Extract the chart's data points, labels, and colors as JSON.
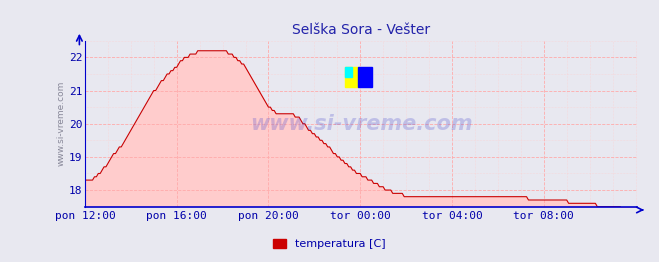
{
  "title": "Selška Sora - Vešter",
  "title_color": "#2222aa",
  "bg_color": "#e8e8f0",
  "plot_bg_color": "#e8e8f0",
  "line_color": "#cc0000",
  "fill_color": "#ffcccc",
  "grid_color": "#ffaaaa",
  "grid_minor_color": "#ffcccc",
  "axis_color": "#0000cc",
  "tick_label_color": "#0000aa",
  "ylabel_text": "www.si-vreme.com",
  "ylabel_color": "#888899",
  "legend_label": "temperatura [C]",
  "legend_color": "#cc0000",
  "watermark_text": "www.si-vreme.com",
  "ylim": [
    17.5,
    22.5
  ],
  "yticks": [
    18,
    19,
    20,
    21,
    22
  ],
  "x_tick_positions": [
    0,
    48,
    96,
    144,
    192,
    240
  ],
  "x_tick_labels": [
    "pon 12:00",
    "pon 16:00",
    "pon 20:00",
    "tor 00:00",
    "tor 04:00",
    "tor 08:00"
  ],
  "temp_data": [
    18.3,
    18.3,
    18.3,
    18.3,
    18.3,
    18.4,
    18.4,
    18.5,
    18.5,
    18.6,
    18.7,
    18.7,
    18.8,
    18.9,
    19.0,
    19.1,
    19.1,
    19.2,
    19.3,
    19.3,
    19.4,
    19.5,
    19.6,
    19.7,
    19.8,
    19.9,
    20.0,
    20.1,
    20.2,
    20.3,
    20.4,
    20.5,
    20.6,
    20.7,
    20.8,
    20.9,
    21.0,
    21.0,
    21.1,
    21.2,
    21.3,
    21.3,
    21.4,
    21.5,
    21.5,
    21.6,
    21.6,
    21.7,
    21.7,
    21.8,
    21.9,
    21.9,
    22.0,
    22.0,
    22.0,
    22.1,
    22.1,
    22.1,
    22.1,
    22.2,
    22.2,
    22.2,
    22.2,
    22.2,
    22.2,
    22.2,
    22.2,
    22.2,
    22.2,
    22.2,
    22.2,
    22.2,
    22.2,
    22.2,
    22.2,
    22.1,
    22.1,
    22.1,
    22.0,
    22.0,
    21.9,
    21.9,
    21.8,
    21.8,
    21.7,
    21.6,
    21.5,
    21.4,
    21.3,
    21.2,
    21.1,
    21.0,
    20.9,
    20.8,
    20.7,
    20.6,
    20.5,
    20.5,
    20.4,
    20.4,
    20.3,
    20.3,
    20.3,
    20.3,
    20.3,
    20.3,
    20.3,
    20.3,
    20.3,
    20.3,
    20.2,
    20.2,
    20.2,
    20.1,
    20.0,
    20.0,
    19.9,
    19.8,
    19.8,
    19.7,
    19.7,
    19.6,
    19.6,
    19.5,
    19.5,
    19.4,
    19.4,
    19.3,
    19.3,
    19.2,
    19.1,
    19.1,
    19.0,
    19.0,
    18.9,
    18.9,
    18.8,
    18.8,
    18.7,
    18.7,
    18.6,
    18.6,
    18.5,
    18.5,
    18.5,
    18.4,
    18.4,
    18.4,
    18.3,
    18.3,
    18.3,
    18.2,
    18.2,
    18.2,
    18.1,
    18.1,
    18.1,
    18.0,
    18.0,
    18.0,
    18.0,
    17.9,
    17.9,
    17.9,
    17.9,
    17.9,
    17.9,
    17.8,
    17.8,
    17.8,
    17.8,
    17.8,
    17.8,
    17.8,
    17.8,
    17.8,
    17.8,
    17.8,
    17.8,
    17.8,
    17.8,
    17.8,
    17.8,
    17.8,
    17.8,
    17.8,
    17.8,
    17.8,
    17.8,
    17.8,
    17.8,
    17.8,
    17.8,
    17.8,
    17.8,
    17.8,
    17.8,
    17.8,
    17.8,
    17.8,
    17.8,
    17.8,
    17.8,
    17.8,
    17.8,
    17.8,
    17.8,
    17.8,
    17.8,
    17.8,
    17.8,
    17.8,
    17.8,
    17.8,
    17.8,
    17.8,
    17.8,
    17.8,
    17.8,
    17.8,
    17.8,
    17.8,
    17.8,
    17.8,
    17.8,
    17.8,
    17.8,
    17.8,
    17.8,
    17.8,
    17.8,
    17.8,
    17.7,
    17.7,
    17.7,
    17.7,
    17.7,
    17.7,
    17.7,
    17.7,
    17.7,
    17.7,
    17.7,
    17.7,
    17.7,
    17.7,
    17.7,
    17.7,
    17.7,
    17.7,
    17.7,
    17.7,
    17.7,
    17.6,
    17.6,
    17.6,
    17.6,
    17.6,
    17.6,
    17.6,
    17.6,
    17.6,
    17.6,
    17.6,
    17.6,
    17.6,
    17.6,
    17.6,
    17.5,
    17.5,
    17.5,
    17.5,
    17.5,
    17.5,
    17.5,
    17.5,
    17.5,
    17.5,
    17.5,
    17.5,
    17.5,
    17.4,
    17.4,
    17.4,
    17.4,
    17.4,
    17.4,
    17.4,
    17.4,
    17.4
  ]
}
